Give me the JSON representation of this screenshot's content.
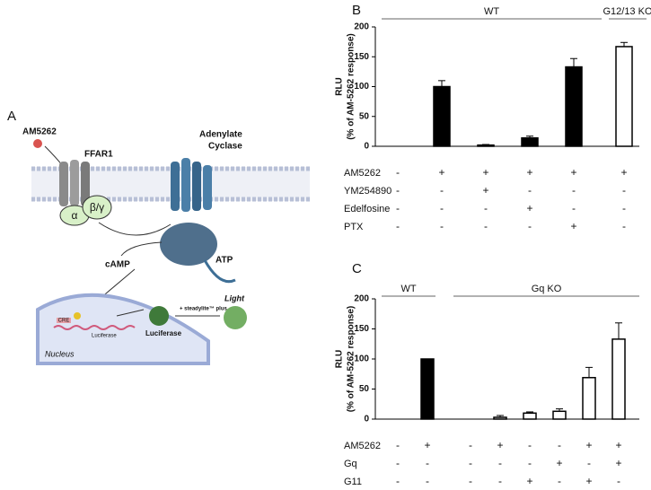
{
  "diagram": {
    "panel_label": "A",
    "ligand": "AM5262",
    "receptor": "FFAR1",
    "alpha": "α",
    "beta_gamma": "β/γ",
    "cyclase": [
      "Adenylate",
      "Cyclase"
    ],
    "atp": "ATP",
    "camp": "cAMP",
    "cre": "CRE",
    "gene": "Luciferase",
    "nucleus": "Nucleus",
    "luciferase": "Luciferase",
    "reagent": "+ steadylite™ plus",
    "light": "Light"
  },
  "chart_data": [
    {
      "type": "bar",
      "panel_label": "B",
      "ylabel": [
        "RLU",
        "(% of AM-5262 response)"
      ],
      "ylim": [
        0,
        200
      ],
      "yticks": [
        0,
        50,
        100,
        150,
        200
      ],
      "categories": [
        null,
        null,
        null,
        null,
        null,
        null
      ],
      "values": [
        0,
        100,
        2,
        14,
        133,
        167
      ],
      "errors": [
        0,
        10,
        1,
        3,
        14,
        7
      ],
      "colors": [
        "#000000",
        "#000000",
        "#000000",
        "#000000",
        "#000000",
        "#ffffff"
      ],
      "groups": [
        "WT",
        "G12/13 KO"
      ],
      "conditions": [
        {
          "name": "AM5262",
          "signs": [
            "-",
            "+",
            "+",
            "+",
            "+",
            "+"
          ]
        },
        {
          "name": "YM254890",
          "signs": [
            "-",
            "-",
            "+",
            "-",
            "-",
            "-"
          ]
        },
        {
          "name": "Edelfosine",
          "signs": [
            "-",
            "-",
            "-",
            "+",
            "-",
            "-"
          ]
        },
        {
          "name": "PTX",
          "signs": [
            "-",
            "-",
            "-",
            "-",
            "+",
            "-"
          ]
        }
      ]
    },
    {
      "type": "bar",
      "panel_label": "C",
      "ylabel": [
        "RLU",
        "(% of AM-5262 response)"
      ],
      "ylim": [
        0,
        200
      ],
      "yticks": [
        0,
        50,
        100,
        150,
        200
      ],
      "categories": [
        null,
        null,
        null,
        null,
        null,
        null,
        null,
        null
      ],
      "values": [
        0,
        100,
        0,
        3,
        10,
        13,
        69,
        133
      ],
      "errors": [
        null,
        null,
        null,
        3,
        2,
        4,
        17,
        27
      ],
      "colors": [
        "#000000",
        "#000000",
        "#ffffff",
        "#ffffff",
        "#ffffff",
        "#ffffff",
        "#ffffff",
        "#ffffff"
      ],
      "groups": [
        "WT",
        "Gq KO"
      ],
      "conditions": [
        {
          "name": "AM5262",
          "signs": [
            "-",
            "+",
            "-",
            "+",
            "-",
            "-",
            "+",
            "+"
          ]
        },
        {
          "name": "Gq",
          "signs": [
            "-",
            "-",
            "-",
            "-",
            "-",
            "+",
            "-",
            "+"
          ]
        },
        {
          "name": "G11",
          "signs": [
            "-",
            "-",
            "-",
            "-",
            "+",
            "-",
            "+",
            "-"
          ]
        }
      ]
    }
  ]
}
